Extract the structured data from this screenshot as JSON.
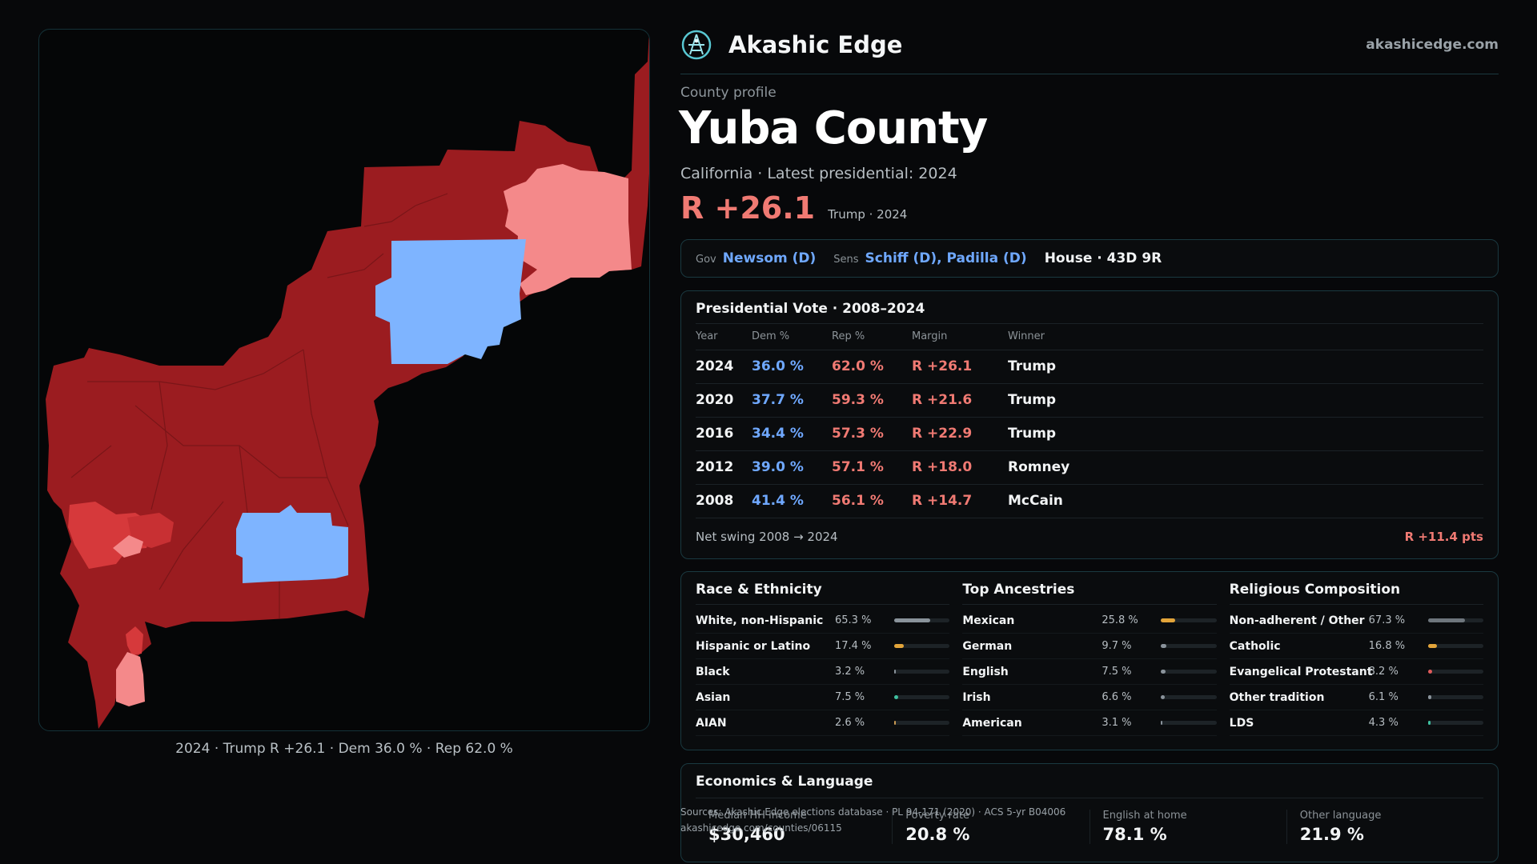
{
  "brand": {
    "name": "Akashic Edge",
    "url": "akashicedge.com"
  },
  "county": {
    "eyebrow": "County profile",
    "name": "Yuba County",
    "subline": "California · Latest presidential: 2024",
    "margin": "R +26.1",
    "margin_note": "Trump · 2024"
  },
  "officials": {
    "gov_key": "Gov",
    "gov": "Newsom (D)",
    "sens_key": "Sens",
    "sens": "Schiff (D), Padilla (D)",
    "house": "House · 43D 9R"
  },
  "presidential": {
    "title": "Presidential Vote · 2008–2024",
    "headers": [
      "Year",
      "Dem %",
      "Rep %",
      "Margin",
      "Winner"
    ],
    "rows": [
      {
        "year": "2024",
        "dem": "36.0 %",
        "rep": "62.0 %",
        "margin": "R +26.1",
        "winner": "Trump"
      },
      {
        "year": "2020",
        "dem": "37.7 %",
        "rep": "59.3 %",
        "margin": "R +21.6",
        "winner": "Trump"
      },
      {
        "year": "2016",
        "dem": "34.4 %",
        "rep": "57.3 %",
        "margin": "R +22.9",
        "winner": "Trump"
      },
      {
        "year": "2012",
        "dem": "39.0 %",
        "rep": "57.1 %",
        "margin": "R +18.0",
        "winner": "Romney"
      },
      {
        "year": "2008",
        "dem": "41.4 %",
        "rep": "56.1 %",
        "margin": "R +14.7",
        "winner": "McCain"
      }
    ],
    "swing_label": "Net swing 2008 → 2024",
    "swing_value": "R +11.4 pts"
  },
  "race": {
    "title": "Race & Ethnicity",
    "items": [
      {
        "label": "White, non-Hispanic",
        "value": "65.3 %",
        "fraction": 0.653,
        "color": "#8a939b"
      },
      {
        "label": "Hispanic or Latino",
        "value": "17.4 %",
        "fraction": 0.174,
        "color": "#e2a43a"
      },
      {
        "label": "Black",
        "value": "3.2 %",
        "fraction": 0.032,
        "color": "#8a939b"
      },
      {
        "label": "Asian",
        "value": "7.5 %",
        "fraction": 0.075,
        "color": "#3fc0a0"
      },
      {
        "label": "AIAN",
        "value": "2.6 %",
        "fraction": 0.026,
        "color": "#c99a52"
      }
    ]
  },
  "ancestry": {
    "title": "Top Ancestries",
    "items": [
      {
        "label": "Mexican",
        "value": "25.8 %",
        "fraction": 0.258,
        "color": "#e2a43a"
      },
      {
        "label": "German",
        "value": "9.7 %",
        "fraction": 0.097,
        "color": "#8a939b"
      },
      {
        "label": "English",
        "value": "7.5 %",
        "fraction": 0.075,
        "color": "#8a939b"
      },
      {
        "label": "Irish",
        "value": "6.6 %",
        "fraction": 0.066,
        "color": "#8a939b"
      },
      {
        "label": "American",
        "value": "3.1 %",
        "fraction": 0.031,
        "color": "#8a939b"
      }
    ]
  },
  "religion": {
    "title": "Religious Composition",
    "items": [
      {
        "label": "Non-adherent / Other",
        "value": "67.3 %",
        "fraction": 0.673,
        "color": "#6e767d"
      },
      {
        "label": "Catholic",
        "value": "16.8 %",
        "fraction": 0.168,
        "color": "#e2a43a"
      },
      {
        "label": "Evangelical Protestant",
        "value": "8.2 %",
        "fraction": 0.082,
        "color": "#e05a5a"
      },
      {
        "label": "Other tradition",
        "value": "6.1 %",
        "fraction": 0.061,
        "color": "#8a939b"
      },
      {
        "label": "LDS",
        "value": "4.3 %",
        "fraction": 0.043,
        "color": "#3fc0a0"
      }
    ]
  },
  "economics": {
    "title": "Economics & Language",
    "items": [
      {
        "label": "Median HH income",
        "value": "$30,460"
      },
      {
        "label": "Poverty rate",
        "value": "20.8 %"
      },
      {
        "label": "English at home",
        "value": "78.1 %"
      },
      {
        "label": "Other language",
        "value": "21.9 %"
      }
    ]
  },
  "sources": {
    "line1": "Sources: Akashic Edge elections database · PL 94-171 (2020) · ACS 5-yr B04006",
    "line2": "akashicedge.com/counties/06115"
  },
  "map": {
    "caption": "2024 · Trump R +26.1 · Dem 36.0 % · Rep 62.0 %",
    "colors": {
      "strong_rep": "#9b1c20",
      "mid_rep": "#d6393b",
      "lean_rep": "#f4898a",
      "dem": "#7eb4ff"
    }
  }
}
